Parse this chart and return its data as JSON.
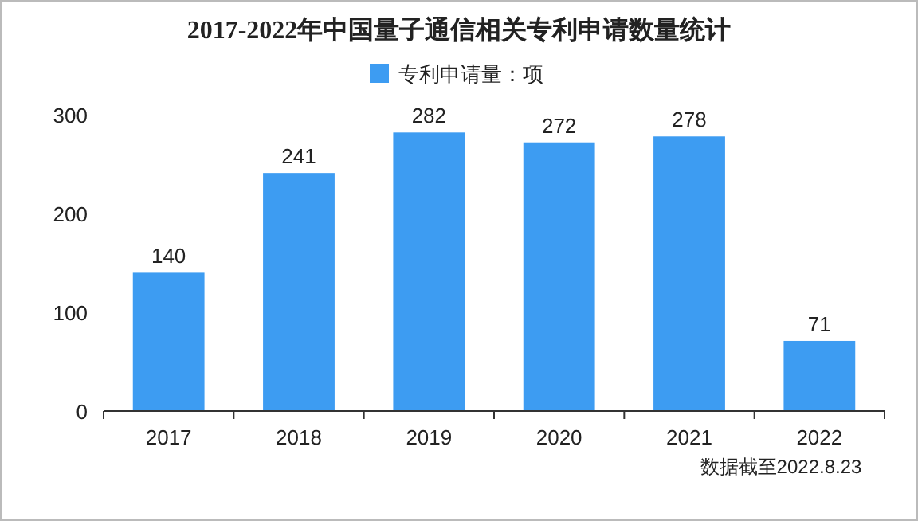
{
  "chart_data": {
    "type": "bar",
    "title": "2017-2022年中国量子通信相关专利申请数量统计",
    "categories": [
      "2017",
      "2018",
      "2019",
      "2020",
      "2021",
      "2022"
    ],
    "series": [
      {
        "name": "专利申请量：项",
        "color": "#3d9cf2",
        "values": [
          140,
          241,
          282,
          272,
          278,
          71
        ]
      }
    ],
    "ylim": [
      0,
      300
    ],
    "yticks": [
      0,
      100,
      200,
      300
    ],
    "legend": "top",
    "data_labels": true,
    "annotations": [
      "数据截至2022.8.23"
    ]
  }
}
